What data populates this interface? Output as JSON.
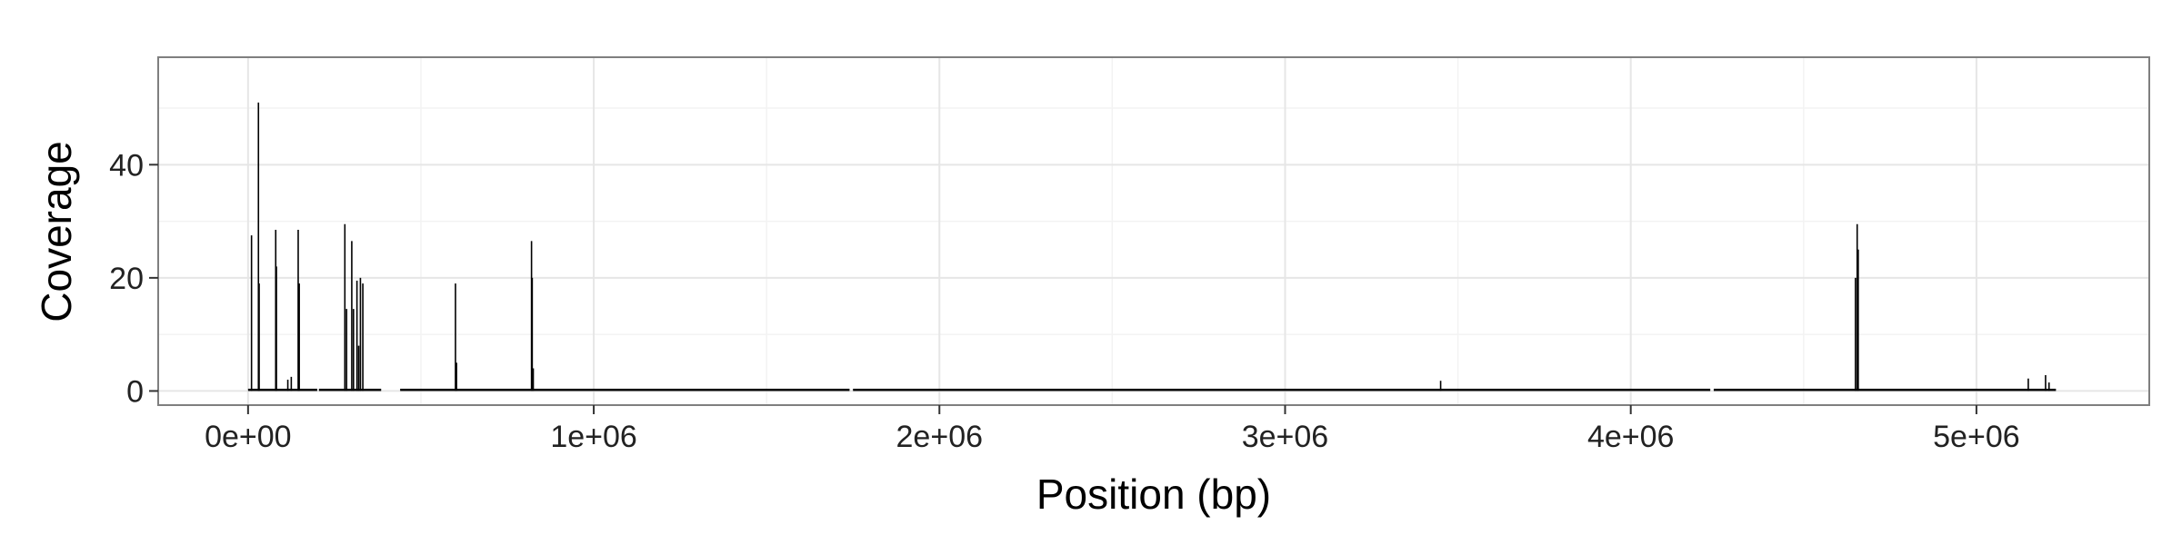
{
  "chart_data": {
    "type": "bar",
    "title": "",
    "xlabel": "Position (bp)",
    "ylabel": "Coverage",
    "xlim": [
      -260000,
      5500000
    ],
    "ylim": [
      -2.5,
      59
    ],
    "x_ticks": [
      {
        "value": 0,
        "label": "0e+00"
      },
      {
        "value": 1000000,
        "label": "1e+06"
      },
      {
        "value": 2000000,
        "label": "2e+06"
      },
      {
        "value": 3000000,
        "label": "3e+06"
      },
      {
        "value": 4000000,
        "label": "4e+06"
      },
      {
        "value": 5000000,
        "label": "5e+06"
      }
    ],
    "y_ticks": [
      {
        "value": 0,
        "label": "0"
      },
      {
        "value": 20,
        "label": "20"
      },
      {
        "value": 40,
        "label": "40"
      }
    ],
    "minor_grid_x": [
      500000,
      1500000,
      2500000,
      3500000,
      4500000
    ],
    "minor_grid_y": [
      10,
      30,
      50
    ],
    "grid": true,
    "legend": "none",
    "colors": {
      "bars": "#000000",
      "grid": "#e6e6e6",
      "minor_grid": "#f3f3f3",
      "panel_border": "#7f7f7f"
    },
    "baseline_segments": [
      [
        0,
        200000
      ],
      [
        205000,
        385000
      ],
      [
        440000,
        1740000
      ],
      [
        1750000,
        4230000
      ],
      [
        4240000,
        5230000
      ]
    ],
    "baseline_level": 0.4,
    "peaks": [
      {
        "x": 10000,
        "y": 27.5
      },
      {
        "x": 30000,
        "y": 51
      },
      {
        "x": 32000,
        "y": 19
      },
      {
        "x": 80000,
        "y": 28.5
      },
      {
        "x": 82000,
        "y": 22
      },
      {
        "x": 115000,
        "y": 2
      },
      {
        "x": 125000,
        "y": 2.5
      },
      {
        "x": 145000,
        "y": 28.5
      },
      {
        "x": 148000,
        "y": 19
      },
      {
        "x": 280000,
        "y": 29.5
      },
      {
        "x": 285000,
        "y": 14.5
      },
      {
        "x": 300000,
        "y": 26.5
      },
      {
        "x": 305000,
        "y": 14.5
      },
      {
        "x": 315000,
        "y": 19.5
      },
      {
        "x": 320000,
        "y": 8
      },
      {
        "x": 325000,
        "y": 20
      },
      {
        "x": 332000,
        "y": 19
      },
      {
        "x": 600000,
        "y": 19
      },
      {
        "x": 603000,
        "y": 5
      },
      {
        "x": 820000,
        "y": 26.5
      },
      {
        "x": 822000,
        "y": 20
      },
      {
        "x": 825000,
        "y": 4
      },
      {
        "x": 3450000,
        "y": 1.8
      },
      {
        "x": 4650000,
        "y": 20
      },
      {
        "x": 4655000,
        "y": 29.5
      },
      {
        "x": 4658000,
        "y": 25
      },
      {
        "x": 5150000,
        "y": 2.2
      },
      {
        "x": 5200000,
        "y": 2.8
      },
      {
        "x": 5210000,
        "y": 1.5
      }
    ]
  }
}
